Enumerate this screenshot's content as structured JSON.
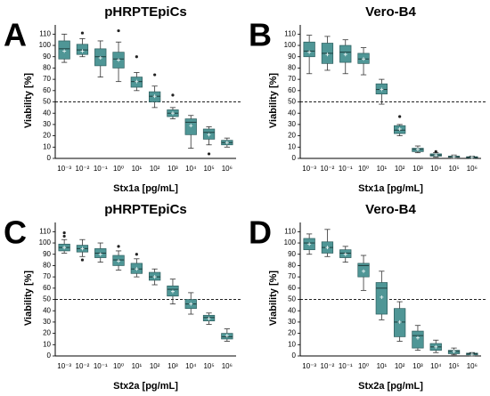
{
  "chart_data": [
    {
      "type": "box",
      "panel": "A",
      "title": "pHRPTEpiCs",
      "xlabel": "Stx1a [pg/mL]",
      "ylabel": "Viability [%]",
      "categories": [
        "10⁻³",
        "10⁻²",
        "10⁻¹",
        "10⁰",
        "10¹",
        "10²",
        "10³",
        "10⁴",
        "10⁵",
        "10⁶"
      ],
      "color": "#4f9696",
      "ylim": [
        0,
        115
      ],
      "yticks": [
        0,
        10,
        20,
        30,
        40,
        50,
        60,
        70,
        80,
        90,
        100,
        110
      ],
      "reference_line": 50,
      "boxes": [
        {
          "min": 85,
          "q1": 88,
          "median": 97,
          "q3": 104,
          "max": 110,
          "mean": 95
        },
        {
          "min": 90,
          "q1": 92,
          "median": 96,
          "q3": 101,
          "max": 106,
          "mean": 95,
          "outliers": [
            111
          ]
        },
        {
          "min": 72,
          "q1": 82,
          "median": 90,
          "q3": 97,
          "max": 104,
          "mean": 89
        },
        {
          "min": 68,
          "q1": 80,
          "median": 88,
          "q3": 94,
          "max": 103,
          "mean": 87,
          "outliers": [
            113
          ]
        },
        {
          "min": 60,
          "q1": 63,
          "median": 68,
          "q3": 72,
          "max": 76,
          "mean": 68,
          "outliers": [
            90
          ]
        },
        {
          "min": 45,
          "q1": 50,
          "median": 55,
          "q3": 59,
          "max": 64,
          "mean": 55,
          "outliers": [
            74
          ]
        },
        {
          "min": 35,
          "q1": 37,
          "median": 40,
          "q3": 43,
          "max": 45,
          "mean": 40,
          "outliers": [
            56
          ]
        },
        {
          "min": 9,
          "q1": 21,
          "median": 32,
          "q3": 35,
          "max": 38,
          "mean": 29
        },
        {
          "min": 12,
          "q1": 17,
          "median": 23,
          "q3": 26,
          "max": 28,
          "mean": 21,
          "outliers": [
            4
          ]
        },
        {
          "min": 10,
          "q1": 12,
          "median": 14,
          "q3": 16,
          "max": 18,
          "mean": 14
        }
      ]
    },
    {
      "type": "box",
      "panel": "B",
      "title": "Vero-B4",
      "xlabel": "Stx1a [pg/mL]",
      "ylabel": "Viability [%]",
      "categories": [
        "10⁻³",
        "10⁻²",
        "10⁻¹",
        "10⁰",
        "10¹",
        "10²",
        "10³",
        "10⁴",
        "10⁵",
        "10⁶"
      ],
      "color": "#4f9696",
      "ylim": [
        0,
        115
      ],
      "yticks": [
        0,
        10,
        20,
        30,
        40,
        50,
        60,
        70,
        80,
        90,
        100,
        110
      ],
      "reference_line": 50,
      "boxes": [
        {
          "min": 75,
          "q1": 90,
          "median": 95,
          "q3": 103,
          "max": 109,
          "mean": 94
        },
        {
          "min": 78,
          "q1": 84,
          "median": 93,
          "q3": 102,
          "max": 108,
          "mean": 92
        },
        {
          "min": 75,
          "q1": 85,
          "median": 94,
          "q3": 100,
          "max": 105,
          "mean": 92
        },
        {
          "min": 74,
          "q1": 84,
          "median": 88,
          "q3": 93,
          "max": 98,
          "mean": 88
        },
        {
          "min": 48,
          "q1": 57,
          "median": 61,
          "q3": 66,
          "max": 70,
          "mean": 61
        },
        {
          "min": 20,
          "q1": 22,
          "median": 25,
          "q3": 29,
          "max": 30,
          "mean": 26,
          "outliers": [
            37
          ]
        },
        {
          "min": 5,
          "q1": 6,
          "median": 8,
          "q3": 9,
          "max": 11,
          "mean": 8
        },
        {
          "min": 1,
          "q1": 2,
          "median": 3,
          "q3": 4,
          "max": 5,
          "mean": 3,
          "outliers": [
            6
          ]
        },
        {
          "min": 0,
          "q1": 1,
          "median": 1.5,
          "q3": 2,
          "max": 3,
          "mean": 1.5
        },
        {
          "min": 0,
          "q1": 0.5,
          "median": 1,
          "q3": 1.5,
          "max": 2,
          "mean": 1
        }
      ]
    },
    {
      "type": "box",
      "panel": "C",
      "title": "pHRPTEpiCs",
      "xlabel": "Stx2a [pg/mL]",
      "ylabel": "Viability [%]",
      "categories": [
        "10⁻³",
        "10⁻²",
        "10⁻¹",
        "10⁰",
        "10¹",
        "10²",
        "10³",
        "10⁴",
        "10⁵",
        "10⁶"
      ],
      "color": "#4f9696",
      "ylim": [
        0,
        115
      ],
      "yticks": [
        0,
        10,
        20,
        30,
        40,
        50,
        60,
        70,
        80,
        90,
        100,
        110
      ],
      "reference_line": 50,
      "boxes": [
        {
          "min": 91,
          "q1": 93,
          "median": 96,
          "q3": 99,
          "max": 103,
          "mean": 96,
          "outliers": [
            106,
            109
          ]
        },
        {
          "min": 88,
          "q1": 92,
          "median": 95,
          "q3": 98,
          "max": 103,
          "mean": 95,
          "outliers": [
            85
          ]
        },
        {
          "min": 83,
          "q1": 87,
          "median": 91,
          "q3": 95,
          "max": 100,
          "mean": 90
        },
        {
          "min": 76,
          "q1": 80,
          "median": 85,
          "q3": 89,
          "max": 93,
          "mean": 84,
          "outliers": [
            97
          ]
        },
        {
          "min": 70,
          "q1": 73,
          "median": 77,
          "q3": 82,
          "max": 86,
          "mean": 77,
          "outliers": [
            90
          ]
        },
        {
          "min": 63,
          "q1": 67,
          "median": 70,
          "q3": 74,
          "max": 77,
          "mean": 70
        },
        {
          "min": 46,
          "q1": 53,
          "median": 59,
          "q3": 62,
          "max": 68,
          "mean": 57
        },
        {
          "min": 37,
          "q1": 42,
          "median": 46,
          "q3": 50,
          "max": 56,
          "mean": 46
        },
        {
          "min": 28,
          "q1": 31,
          "median": 34,
          "q3": 36,
          "max": 38,
          "mean": 33
        },
        {
          "min": 13,
          "q1": 15,
          "median": 17,
          "q3": 20,
          "max": 24,
          "mean": 18
        }
      ]
    },
    {
      "type": "box",
      "panel": "D",
      "title": "Vero-B4",
      "xlabel": "Stx2a [pg/mL]",
      "ylabel": "Viability [%]",
      "categories": [
        "10⁻³",
        "10⁻²",
        "10⁻¹",
        "10⁰",
        "10¹",
        "10²",
        "10³",
        "10⁴",
        "10⁵",
        "10⁶"
      ],
      "color": "#4f9696",
      "ylim": [
        0,
        115
      ],
      "yticks": [
        0,
        10,
        20,
        30,
        40,
        50,
        60,
        70,
        80,
        90,
        100,
        110
      ],
      "reference_line": 50,
      "boxes": [
        {
          "min": 90,
          "q1": 94,
          "median": 100,
          "q3": 104,
          "max": 108,
          "mean": 99
        },
        {
          "min": 88,
          "q1": 91,
          "median": 96,
          "q3": 101,
          "max": 112,
          "mean": 96
        },
        {
          "min": 83,
          "q1": 87,
          "median": 91,
          "q3": 94,
          "max": 97,
          "mean": 90
        },
        {
          "min": 58,
          "q1": 70,
          "median": 80,
          "q3": 82,
          "max": 89,
          "mean": 75
        },
        {
          "min": 32,
          "q1": 37,
          "median": 60,
          "q3": 65,
          "max": 75,
          "mean": 52
        },
        {
          "min": 13,
          "q1": 17,
          "median": 30,
          "q3": 42,
          "max": 48,
          "mean": 30
        },
        {
          "min": 5,
          "q1": 7,
          "median": 18,
          "q3": 22,
          "max": 27,
          "mean": 16
        },
        {
          "min": 3,
          "q1": 5,
          "median": 8,
          "q3": 11,
          "max": 14,
          "mean": 8
        },
        {
          "min": 1,
          "q1": 2,
          "median": 4,
          "q3": 5,
          "max": 7,
          "mean": 4
        },
        {
          "min": 0,
          "q1": 1,
          "median": 2,
          "q3": 2.5,
          "max": 3,
          "mean": 1.5
        }
      ]
    }
  ]
}
